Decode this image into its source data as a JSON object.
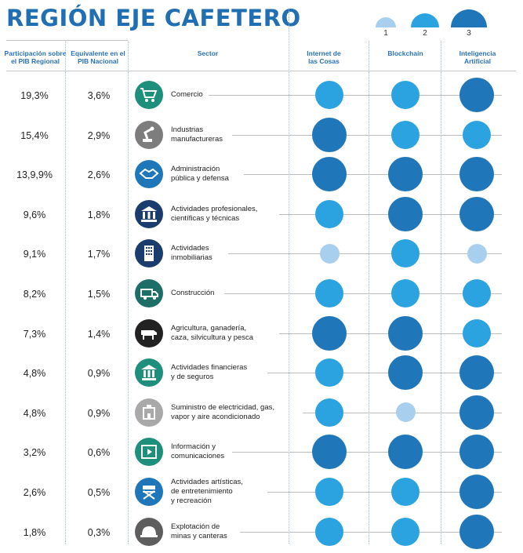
{
  "title": "REGIÓN EJE CAFETERO",
  "headers": {
    "participacion": "Participación sobre\nel PIB Regional",
    "equivalente": "Equivalente en el\nPIB Nacional",
    "sector": "Sector",
    "iot": "Internet de\nlas Cosas",
    "blockchain": "Blockchain",
    "ia": "Inteligencia\nArtificial"
  },
  "legend": [
    {
      "level": 1,
      "label": "1",
      "color": "#a9cfee"
    },
    {
      "level": 2,
      "label": "2",
      "color": "#2ba3e0"
    },
    {
      "level": 3,
      "label": "3",
      "color": "#1f77b9"
    }
  ],
  "colors": {
    "level1": "#a9cfee",
    "level2": "#2ba3e0",
    "level3": "#1f77b9",
    "title": "#1f6fb2"
  },
  "chart_data": {
    "type": "table",
    "title": "REGIÓN EJE CAFETERO",
    "columns": [
      "Participación sobre el PIB Regional",
      "Equivalente en el PIB Nacional",
      "Sector",
      "Internet de las Cosas",
      "Blockchain",
      "Inteligencia Artificial"
    ],
    "rows": [
      {
        "regional": "19,3%",
        "nacional": "3,6%",
        "sector": "Comercio",
        "icon": "cart-icon",
        "icon_color": "#1e8f7a",
        "iot": 2,
        "blockchain": 2,
        "ia": 3
      },
      {
        "regional": "15,4%",
        "nacional": "2,9%",
        "sector": "Industrias\nmanufactureras",
        "icon": "robot-arm-icon",
        "icon_color": "#7d7d7d",
        "iot": 3,
        "blockchain": 2,
        "ia": 2
      },
      {
        "regional": "13,9,9%",
        "nacional": "2,6%",
        "sector": "Administración\npública y defensa",
        "icon": "handshake-icon",
        "icon_color": "#1f77b9",
        "iot": 3,
        "blockchain": 3,
        "ia": 3
      },
      {
        "regional": "9,6%",
        "nacional": "1,8%",
        "sector": "Actividades profesionales,\ncientíficas y técnicas",
        "icon": "institution-icon",
        "icon_color": "#1a3d6e",
        "iot": 2,
        "blockchain": 3,
        "ia": 3
      },
      {
        "regional": "9,1%",
        "nacional": "1,7%",
        "sector": "Actividades\ninmobiliarias",
        "icon": "building-icon",
        "icon_color": "#1a3d6e",
        "iot": 1,
        "blockchain": 2,
        "ia": 1
      },
      {
        "regional": "8,2%",
        "nacional": "1,5%",
        "sector": "Construcción",
        "icon": "truck-icon",
        "icon_color": "#1e6e68",
        "iot": 2,
        "blockchain": 2,
        "ia": 2
      },
      {
        "regional": "7,3%",
        "nacional": "1,4%",
        "sector": "Agricultura, ganadería,\ncaza, silvicultura y pesca",
        "icon": "cow-icon",
        "icon_color": "#222222",
        "iot": 3,
        "blockchain": 3,
        "ia": 2
      },
      {
        "regional": "4,8%",
        "nacional": "0,9%",
        "sector": "Actividades financieras\ny de seguros",
        "icon": "bank-icon",
        "icon_color": "#1e8f7a",
        "iot": 2,
        "blockchain": 3,
        "ia": 3
      },
      {
        "regional": "4,8%",
        "nacional": "0,9%",
        "sector": "Suministro de electricidad, gas,\nvapor y aire acondicionado",
        "icon": "power-plant-icon",
        "icon_color": "#a9a9a9",
        "iot": 2,
        "blockchain": 1,
        "ia": 3
      },
      {
        "regional": "3,2%",
        "nacional": "0,6%",
        "sector": "Información y\ncomunicaciones",
        "icon": "video-icon",
        "icon_color": "#1e8f7a",
        "iot": 3,
        "blockchain": 3,
        "ia": 3
      },
      {
        "regional": "2,6%",
        "nacional": "0,5%",
        "sector": "Actividades artísticas,\nde entretenimiento\ny recreación",
        "icon": "director-chair-icon",
        "icon_color": "#1f77b9",
        "iot": 2,
        "blockchain": 2,
        "ia": 3
      },
      {
        "regional": "1,8%",
        "nacional": "0,3%",
        "sector": "Explotación de\nminas y canteras",
        "icon": "helmet-icon",
        "icon_color": "#5e5e5e",
        "iot": 2,
        "blockchain": 2,
        "ia": 3
      }
    ]
  }
}
